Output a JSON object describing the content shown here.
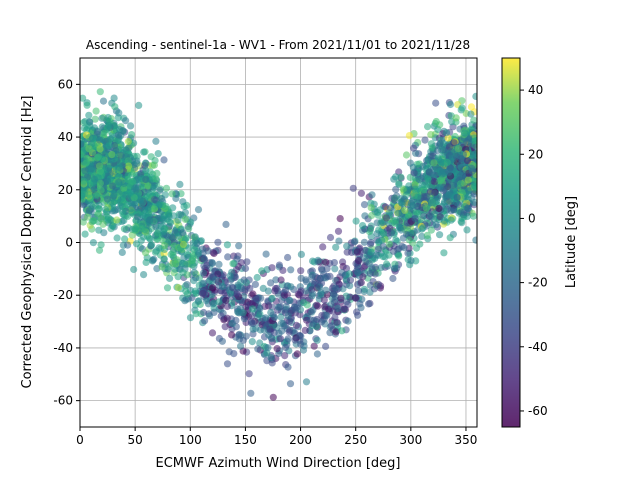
{
  "chart_data": {
    "type": "scatter",
    "title": "Ascending - sentinel-1a - WV1 - From 2021/11/01 to 2021/11/28",
    "xlabel": "ECMWF Azimuth Wind Direction [deg]",
    "ylabel": "Corrected Geophysical Doppler Centroid [Hz]",
    "xlim": [
      0,
      360
    ],
    "ylim": [
      -70,
      70
    ],
    "xticks": [
      "0",
      "50",
      "100",
      "150",
      "200",
      "250",
      "300",
      "350"
    ],
    "yticks": [
      "-60",
      "-40",
      "-20",
      "0",
      "20",
      "40",
      "60"
    ],
    "grid": true,
    "colorbar": {
      "label": "Latitude [deg]",
      "range": [
        -65,
        50
      ],
      "ticks": [
        "-60",
        "-40",
        "-20",
        "0",
        "20",
        "40"
      ],
      "colormap": "viridis"
    },
    "trend_control_points": [
      {
        "x": 0,
        "y": 28
      },
      {
        "x": 30,
        "y": 27
      },
      {
        "x": 60,
        "y": 15
      },
      {
        "x": 90,
        "y": -2
      },
      {
        "x": 120,
        "y": -17
      },
      {
        "x": 150,
        "y": -24
      },
      {
        "x": 180,
        "y": -28
      },
      {
        "x": 200,
        "y": -27
      },
      {
        "x": 230,
        "y": -20
      },
      {
        "x": 260,
        "y": -5
      },
      {
        "x": 290,
        "y": 10
      },
      {
        "x": 320,
        "y": 22
      },
      {
        "x": 340,
        "y": 27
      },
      {
        "x": 360,
        "y": 29
      }
    ],
    "point_count": 3200,
    "marker_alpha": 0.55
  }
}
